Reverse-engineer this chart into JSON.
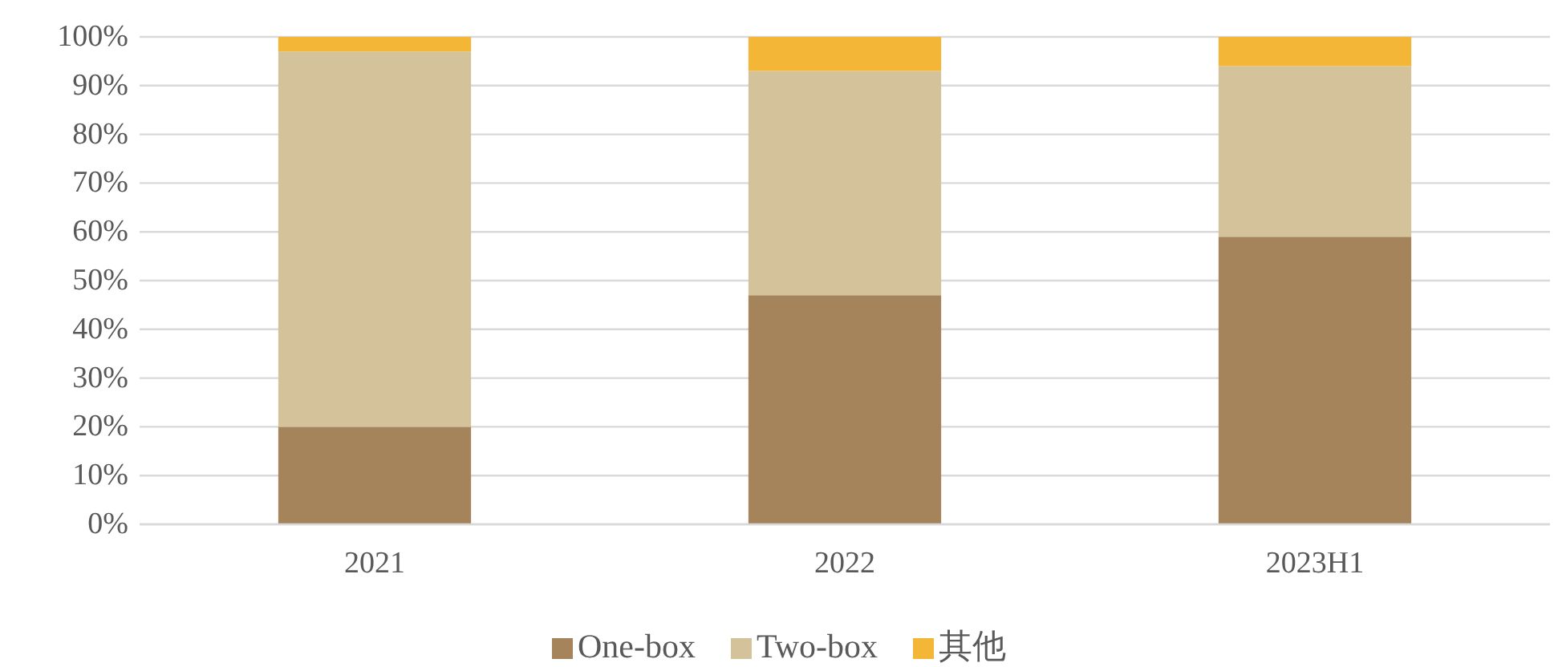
{
  "chart_data": {
    "type": "bar",
    "stacked": true,
    "categories": [
      "2021",
      "2022",
      "2023H1"
    ],
    "series": [
      {
        "name": "One-box",
        "color": "#a5835b",
        "values": [
          20,
          47,
          59
        ]
      },
      {
        "name": "Two-box",
        "color": "#d4c29a",
        "values": [
          77,
          46,
          35
        ]
      },
      {
        "name": "其他",
        "color": "#f3b636",
        "values": [
          3,
          7,
          6
        ]
      }
    ],
    "ylim": [
      0,
      100
    ],
    "yticks": [
      {
        "value": 0,
        "label": "0%"
      },
      {
        "value": 10,
        "label": "10%"
      },
      {
        "value": 20,
        "label": "20%"
      },
      {
        "value": 30,
        "label": "30%"
      },
      {
        "value": 40,
        "label": "40%"
      },
      {
        "value": 50,
        "label": "50%"
      },
      {
        "value": 60,
        "label": "60%"
      },
      {
        "value": 70,
        "label": "70%"
      },
      {
        "value": 80,
        "label": "80%"
      },
      {
        "value": 90,
        "label": "90%"
      },
      {
        "value": 100,
        "label": "100%"
      }
    ],
    "grid": "y",
    "legend": "bottom"
  }
}
